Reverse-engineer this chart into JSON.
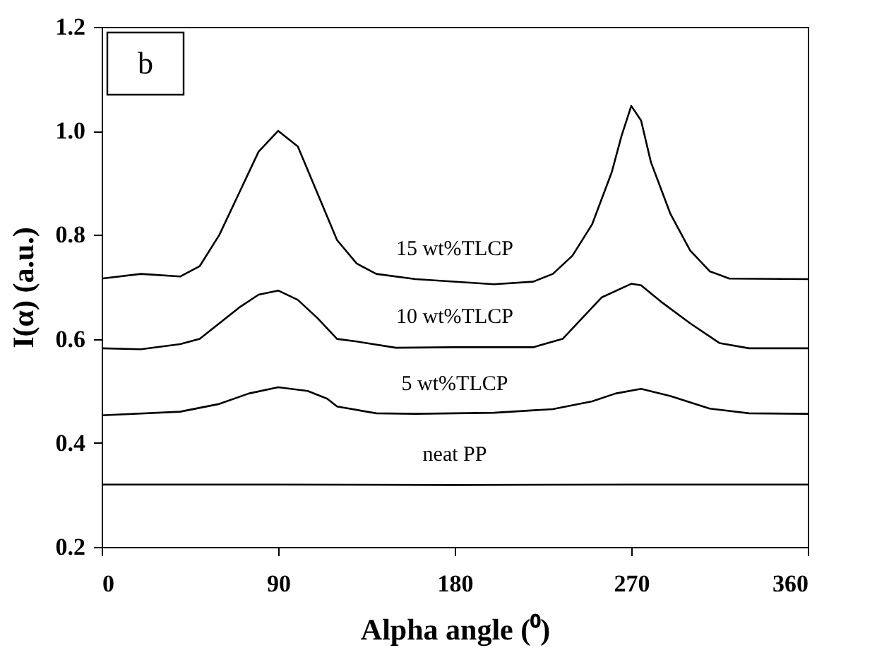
{
  "chart_data": {
    "type": "line",
    "xlabel": "Alpha angle (⁰)",
    "ylabel": "I(α) (a.u.)",
    "annotations": [
      "b"
    ],
    "xlim": [
      0,
      360
    ],
    "xticks": [
      0,
      90,
      180,
      270,
      360
    ],
    "ylim": [
      0.2,
      1.2
    ],
    "yticks": [
      0.2,
      0.4,
      0.6,
      0.8,
      {
        "value": 1.0,
        "label": "1.0"
      },
      1.2
    ],
    "grid": false,
    "marker": "none",
    "line_style": "solid",
    "series": [
      {
        "name": "15 wt%TLCP",
        "color": "#000000",
        "x": [
          0,
          20,
          40,
          50,
          60,
          70,
          80,
          90,
          100,
          110,
          120,
          130,
          140,
          160,
          200,
          220,
          230,
          240,
          250,
          260,
          265,
          270,
          275,
          280,
          290,
          300,
          310,
          320,
          360
        ],
        "values": [
          0.716,
          0.725,
          0.72,
          0.74,
          0.8,
          0.88,
          0.96,
          1.0,
          0.97,
          0.88,
          0.79,
          0.745,
          0.725,
          0.715,
          0.705,
          0.71,
          0.725,
          0.76,
          0.82,
          0.92,
          0.99,
          1.048,
          1.02,
          0.94,
          0.84,
          0.77,
          0.73,
          0.716,
          0.715
        ]
      },
      {
        "name": "10 wt%TLCP",
        "color": "#000000",
        "x": [
          0,
          20,
          40,
          50,
          60,
          70,
          80,
          90,
          100,
          110,
          120,
          130,
          150,
          180,
          220,
          235,
          245,
          255,
          270,
          275,
          285,
          300,
          315,
          330,
          360
        ],
        "values": [
          0.582,
          0.58,
          0.59,
          0.6,
          0.63,
          0.66,
          0.685,
          0.693,
          0.675,
          0.64,
          0.6,
          0.595,
          0.583,
          0.584,
          0.584,
          0.6,
          0.64,
          0.68,
          0.706,
          0.703,
          0.672,
          0.63,
          0.592,
          0.582,
          0.582
        ]
      },
      {
        "name": "5 wt%TLCP",
        "color": "#000000",
        "x": [
          0,
          40,
          60,
          75,
          90,
          105,
          115,
          120,
          140,
          160,
          200,
          230,
          250,
          262,
          275,
          290,
          310,
          330,
          360
        ],
        "values": [
          0.453,
          0.46,
          0.475,
          0.495,
          0.507,
          0.5,
          0.485,
          0.47,
          0.457,
          0.456,
          0.458,
          0.465,
          0.48,
          0.495,
          0.504,
          0.49,
          0.466,
          0.457,
          0.456
        ]
      },
      {
        "name": "neat PP",
        "color": "#000000",
        "x": [
          0,
          90,
          180,
          270,
          360
        ],
        "values": [
          0.32,
          0.32,
          0.319,
          0.32,
          0.32
        ]
      }
    ]
  }
}
